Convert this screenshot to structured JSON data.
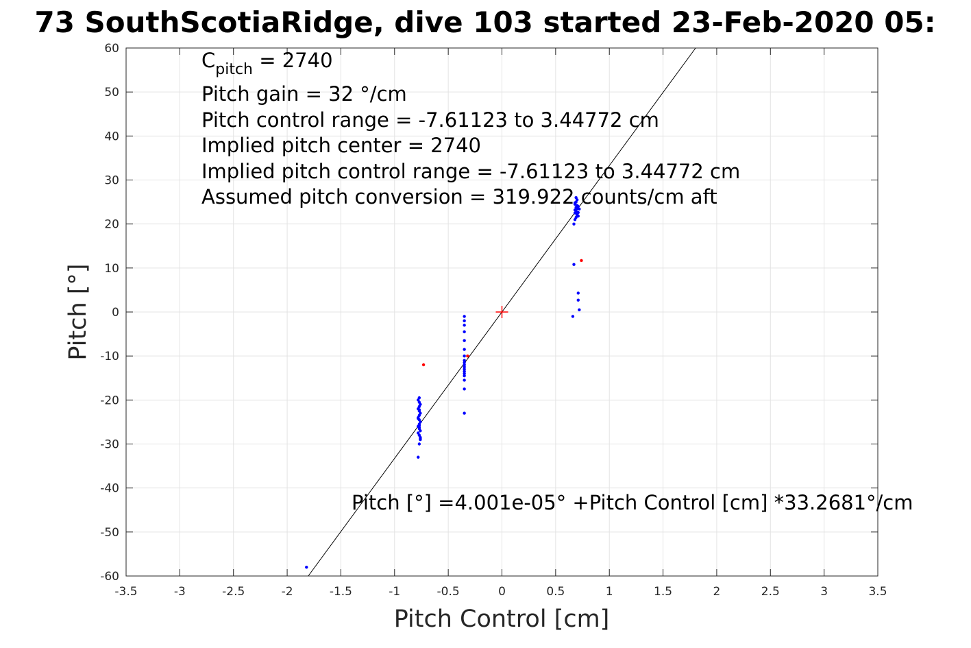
{
  "chart_data": {
    "type": "scatter",
    "title": "73 SouthScotiaRidge, dive 103 started 23-Feb-2020 05:",
    "xlabel": "Pitch Control [cm]",
    "ylabel": "Pitch [°]",
    "xlim": [
      -3.5,
      3.5
    ],
    "ylim": [
      -60,
      60
    ],
    "xticks": [
      -3.5,
      -3,
      -2.5,
      -2,
      -1.5,
      -1,
      -0.5,
      0,
      0.5,
      1,
      1.5,
      2,
      2.5,
      3,
      3.5
    ],
    "xtick_labels": [
      "-3.5",
      "-3",
      "-2.5",
      "-2",
      "-1.5",
      "-1",
      "-0.5",
      "0",
      "0.5",
      "1",
      "1.5",
      "2",
      "2.5",
      "3",
      "3.5"
    ],
    "yticks": [
      -60,
      -50,
      -40,
      -30,
      -20,
      -10,
      0,
      10,
      20,
      30,
      40,
      50,
      60
    ],
    "ytick_labels": [
      "-60",
      "-50",
      "-40",
      "-30",
      "-20",
      "-10",
      "0",
      "10",
      "20",
      "30",
      "40",
      "50",
      "60"
    ],
    "grid": true,
    "annotations": {
      "c_pitch": {
        "main": "C",
        "sub": "pitch",
        "rest": " = 2740"
      },
      "lines": [
        "Pitch gain = 32 °/cm",
        "Pitch control range = -7.61123 to 3.44772 cm",
        "Implied pitch center = 2740",
        "Implied pitch control range = -7.61123 to 3.44772 cm",
        "Assumed pitch conversion = 319.922 counts/cm aft"
      ],
      "fit_equation": "Pitch [°] =4.001e-05° +Pitch Control [cm] *33.2681°/cm"
    },
    "fit_line": {
      "intercept": 4.001e-05,
      "slope": 33.2681,
      "color": "#000000"
    },
    "center_marker": {
      "x": 0,
      "y": 0,
      "color": "#ff0000"
    },
    "series": [
      {
        "color": "#0000ff",
        "x": [
          -1.82,
          -0.78,
          -0.77,
          -0.76,
          -0.77,
          -0.78,
          -0.76,
          -0.77,
          -0.78,
          -0.77,
          -0.76,
          -0.77,
          -0.78,
          -0.77,
          -0.76,
          -0.77,
          -0.78,
          -0.77,
          -0.76,
          -0.77,
          -0.78,
          -0.77,
          -0.76,
          -0.77,
          -0.78,
          -0.77,
          -0.76,
          -0.77,
          -0.35,
          -0.35,
          -0.35,
          -0.35,
          -0.35,
          -0.35,
          -0.35,
          -0.35,
          -0.35,
          -0.35,
          -0.35,
          -0.35,
          -0.35,
          -0.35,
          -0.35,
          -0.35,
          -0.35,
          -0.35,
          0.67,
          0.68,
          0.69,
          0.7,
          0.68,
          0.69,
          0.7,
          0.71,
          0.68,
          0.69,
          0.7,
          0.68,
          0.69,
          0.7,
          0.71,
          0.69,
          0.7,
          0.68,
          0.69,
          0.71,
          0.72,
          0.7,
          0.67,
          0.71,
          0.71,
          0.72,
          0.66
        ],
        "y": [
          -58,
          -33,
          -30,
          -29,
          -28,
          -27.5,
          -27,
          -26.5,
          -26,
          -25.5,
          -25,
          -24.5,
          -24,
          -23.5,
          -23,
          -22.5,
          -22,
          -21.5,
          -21,
          -20.5,
          -20,
          -19.5,
          -28.5,
          -26.2,
          -24.2,
          -22.2,
          -28.8,
          -25.8,
          -23,
          -17.5,
          -15.5,
          -14.5,
          -13.5,
          -12.5,
          -12,
          -11.5,
          -11,
          -10,
          -8.5,
          -6.5,
          -4.5,
          -3,
          -2,
          -1,
          -13,
          -14,
          20,
          21,
          21.5,
          22,
          22.5,
          23,
          23.5,
          24,
          24.5,
          25,
          25.5,
          23.2,
          22.8,
          24.2,
          21.8,
          23.8,
          22.3,
          24.8,
          26,
          22.6,
          23.4,
          22.1,
          10.8,
          4.3,
          2.7,
          0.5,
          -1
        ]
      },
      {
        "color": "#ff0000",
        "x": [
          -0.73,
          0.74,
          -0.32
        ],
        "y": [
          -12,
          11.7,
          -10
        ]
      }
    ]
  }
}
